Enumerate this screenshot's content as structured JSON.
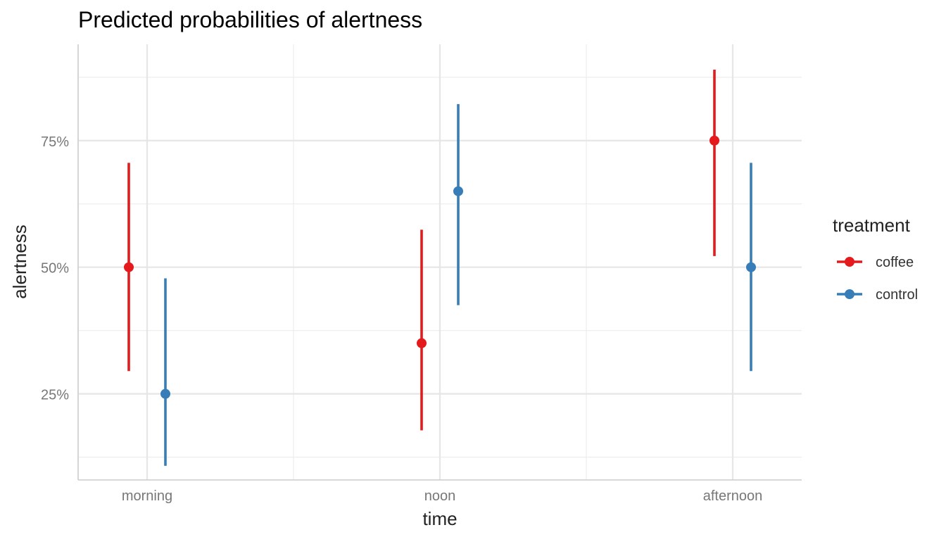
{
  "chart_data": {
    "type": "scatter",
    "title": "Predicted probabilities of alertness",
    "xlabel": "time",
    "ylabel": "alertness",
    "categories": [
      "morning",
      "noon",
      "afternoon"
    ],
    "ylim": [
      0.08,
      0.94
    ],
    "yticks": [
      0.25,
      0.5,
      0.75
    ],
    "ytick_labels": [
      "25%",
      "50%",
      "75%"
    ],
    "grid": true,
    "legend": {
      "title": "treatment",
      "position": "right"
    },
    "series": [
      {
        "name": "coffee",
        "color": "#e41a1c",
        "values": [
          0.5,
          0.35,
          0.75
        ],
        "lower": [
          0.295,
          0.178,
          0.522
        ],
        "upper": [
          0.706,
          0.574,
          0.89
        ]
      },
      {
        "name": "control",
        "color": "#377eb8",
        "values": [
          0.25,
          0.65,
          0.5
        ],
        "lower": [
          0.108,
          0.425,
          0.295
        ],
        "upper": [
          0.478,
          0.822,
          0.706
        ]
      }
    ]
  }
}
